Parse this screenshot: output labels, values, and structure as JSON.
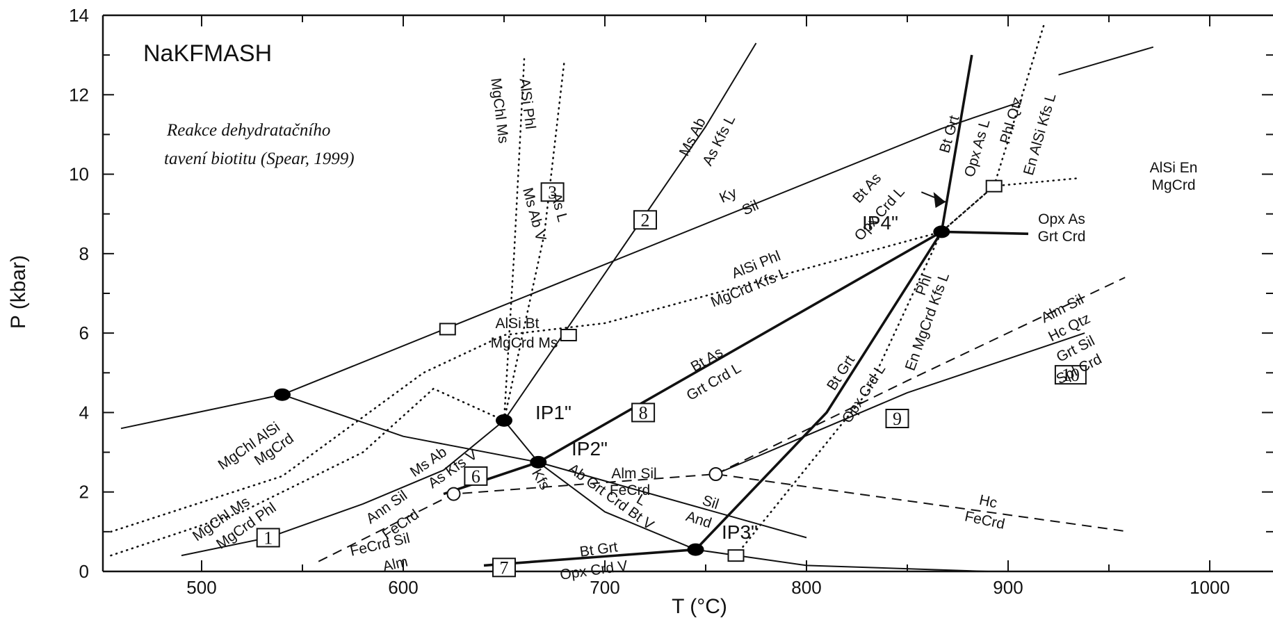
{
  "chart_data": {
    "type": "line",
    "title": "NaKFMASH",
    "subtitle": "Reakce dehydratačního tavení biotitu (Spear, 1999)",
    "subtitle_lines": [
      "Reakce dehydratačního",
      "tavení biotitu (Spear, 1999)"
    ],
    "xlabel": "T (°C)",
    "ylabel": "P (kbar)",
    "xlim": [
      450,
      1010
    ],
    "ylim": [
      0,
      14
    ],
    "x_ticks": [
      500,
      600,
      700,
      800,
      900,
      1000
    ],
    "y_ticks": [
      0,
      2,
      4,
      6,
      8,
      10,
      12,
      14
    ],
    "grid": false,
    "invariant_points": [
      {
        "name": "IP1''",
        "label": "IP1\"",
        "x": 650,
        "y": 3.8
      },
      {
        "name": "IP2''",
        "label": "IP2\"",
        "x": 667,
        "y": 2.75
      },
      {
        "name": "IP3''",
        "label": "IP3\"",
        "x": 745,
        "y": 0.55
      },
      {
        "name": "IP4''",
        "label": "IP4\"",
        "x": 867,
        "y": 8.55
      },
      {
        "name": "Ky-Sil-And triple point",
        "label": "",
        "x": 540,
        "y": 4.45
      }
    ],
    "open_points": [
      {
        "x": 625,
        "y": 1.95
      },
      {
        "x": 755,
        "y": 2.45
      },
      {
        "x": 622,
        "y": 6.1
      },
      {
        "x": 682,
        "y": 5.95
      },
      {
        "x": 893,
        "y": 9.7
      },
      {
        "x": 765,
        "y": 0.4
      }
    ],
    "numbered_boxes": [
      {
        "label": "1",
        "x": 533,
        "y": 0.85
      },
      {
        "label": "2",
        "x": 720,
        "y": 8.85
      },
      {
        "label": "3",
        "x": 674,
        "y": 9.55
      },
      {
        "label": "6",
        "x": 636,
        "y": 2.4
      },
      {
        "label": "7",
        "x": 650,
        "y": 0.1
      },
      {
        "label": "8",
        "x": 719,
        "y": 4.0
      },
      {
        "label": "9",
        "x": 845,
        "y": 3.85
      },
      {
        "label": "10",
        "x": 931,
        "y": 4.95
      }
    ],
    "series": [
      {
        "style": "solid-thin",
        "x": [
          460,
          540
        ],
        "y": [
          3.6,
          4.45
        ]
      },
      {
        "style": "solid-thin",
        "x": [
          540,
          867,
          905
        ],
        "y": [
          4.45,
          11.15,
          11.8
        ]
      },
      {
        "style": "solid-thin",
        "x": [
          540,
          600,
          667,
          800
        ],
        "y": [
          4.45,
          3.4,
          2.75,
          0.85
        ]
      },
      {
        "style": "solid-thin",
        "x": [
          490,
          533,
          580,
          620,
          650
        ],
        "y": [
          0.4,
          0.85,
          1.7,
          2.55,
          3.8
        ]
      },
      {
        "style": "solid-thin",
        "x": [
          650,
          700,
          750,
          775
        ],
        "y": [
          3.8,
          7.5,
          11.2,
          13.3
        ]
      },
      {
        "style": "solid-thin",
        "x": [
          650,
          667,
          700,
          745,
          800,
          890
        ],
        "y": [
          3.8,
          2.75,
          1.5,
          0.55,
          0.15,
          0.0
        ]
      },
      {
        "style": "solid-thin",
        "x": [
          755,
          850,
          938
        ],
        "y": [
          2.45,
          4.5,
          6.0
        ]
      },
      {
        "style": "solid-thin",
        "x": [
          925,
          972
        ],
        "y": [
          12.5,
          13.2
        ]
      },
      {
        "style": "solid-thick",
        "x": [
          620,
          667,
          867
        ],
        "y": [
          1.95,
          2.75,
          8.55
        ]
      },
      {
        "style": "solid-thick",
        "x": [
          745,
          810,
          867,
          882
        ],
        "y": [
          0.55,
          4.0,
          8.55,
          13.0
        ]
      },
      {
        "style": "solid-thick",
        "x": [
          867,
          910
        ],
        "y": [
          8.55,
          8.5
        ]
      },
      {
        "style": "solid-thick",
        "x": [
          640,
          745
        ],
        "y": [
          0.15,
          0.55
        ]
      },
      {
        "style": "dotted",
        "x": [
          455,
          540,
          610,
          650,
          700,
          867,
          893,
          935
        ],
        "y": [
          1.0,
          2.4,
          5.0,
          5.95,
          6.25,
          8.55,
          9.7,
          9.9
        ]
      },
      {
        "style": "dotted",
        "x": [
          455,
          520,
          580,
          615,
          650
        ],
        "y": [
          0.4,
          1.5,
          3.0,
          4.6,
          3.8
        ]
      },
      {
        "style": "dotted",
        "x": [
          650,
          655,
          660
        ],
        "y": [
          3.8,
          8.0,
          12.9
        ]
      },
      {
        "style": "dotted",
        "x": [
          650,
          670,
          680
        ],
        "y": [
          3.8,
          8.5,
          12.9
        ]
      },
      {
        "style": "dotted",
        "x": [
          765,
          830,
          867,
          893,
          918
        ],
        "y": [
          0.4,
          4.5,
          8.55,
          9.7,
          13.8
        ]
      },
      {
        "style": "dashed",
        "x": [
          558,
          625,
          755,
          960
        ],
        "y": [
          0.25,
          1.95,
          2.45,
          1.0
        ]
      },
      {
        "style": "dashed",
        "x": [
          755,
          850,
          958
        ],
        "y": [
          2.45,
          4.8,
          7.4
        ]
      }
    ],
    "annotations": [
      "MgChl Ms",
      "AlSi Phl",
      "Ms Ab V",
      "As L",
      "Ms Ab",
      "As Kfs L",
      "Ky",
      "Sil",
      "AlSi Phl",
      "MgCrd Kfs L",
      "AlSi Bt",
      "MgCrd Ms",
      "Bt As",
      "Grt Crd L",
      "Bt As",
      "Opx Crd L",
      "Bt Grt",
      "Opx As L",
      "Phl Qtz",
      "En AlSi Kfs L",
      "AlSi En",
      "MgCrd",
      "Opx As",
      "Grt Crd",
      "Phl",
      "En MgCrd Kfs L",
      "Bt Grt",
      "Opx Crd L",
      "Alm Sil",
      "Hc Qtz",
      "Grt Sil",
      "Spl Crd",
      "MgChl AlSi",
      "MgCrd",
      "MgChl Ms",
      "MgCrd Phl",
      "Ms Ab",
      "As Kfs V",
      "Ann Sil",
      "FeCrd",
      "Kfs",
      "Ab Grt Crd Bt V",
      "L",
      "Alm Sil",
      "FeCrd",
      "Sil",
      "And",
      "FeCrd Sil",
      "Alm",
      "Bt Grt",
      "Opx Crd V",
      "Hc",
      "FeCrd"
    ]
  }
}
